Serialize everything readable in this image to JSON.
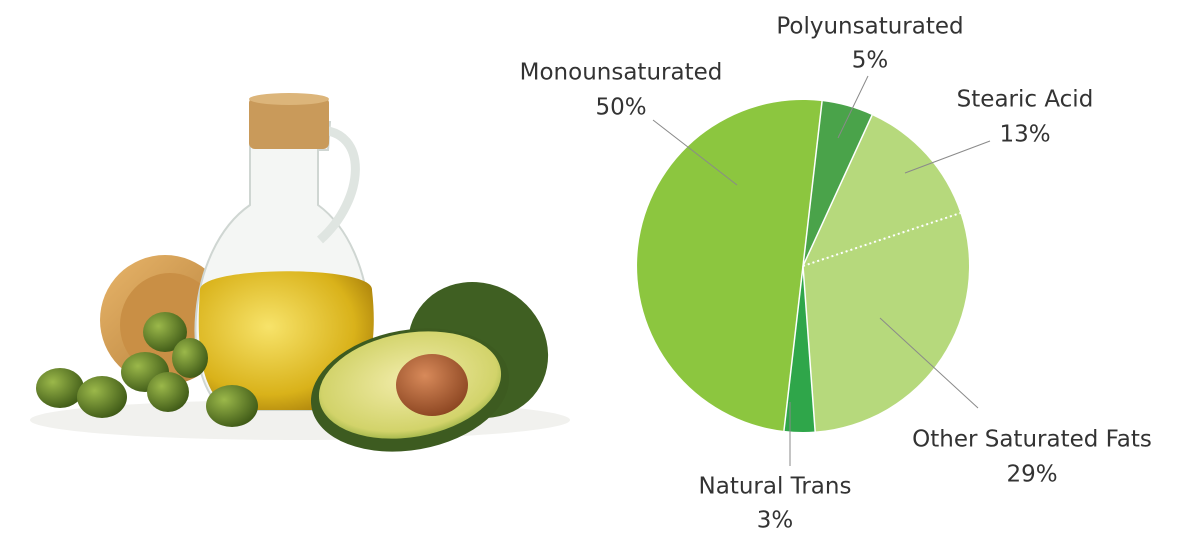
{
  "chart_data": {
    "type": "pie",
    "categories": [
      "Polyunsaturated",
      "Stearic Acid",
      "Other Saturated Fats",
      "Natural Trans",
      "Monounsaturated"
    ],
    "values": [
      5,
      13,
      29,
      3,
      50
    ],
    "value_labels": [
      "5%",
      "13%",
      "29%",
      "3%",
      "50%"
    ],
    "colors": [
      "#4aa34a",
      "#b6d97c",
      "#b6d97c",
      "#2fa64a",
      "#8cc63f"
    ]
  }
}
